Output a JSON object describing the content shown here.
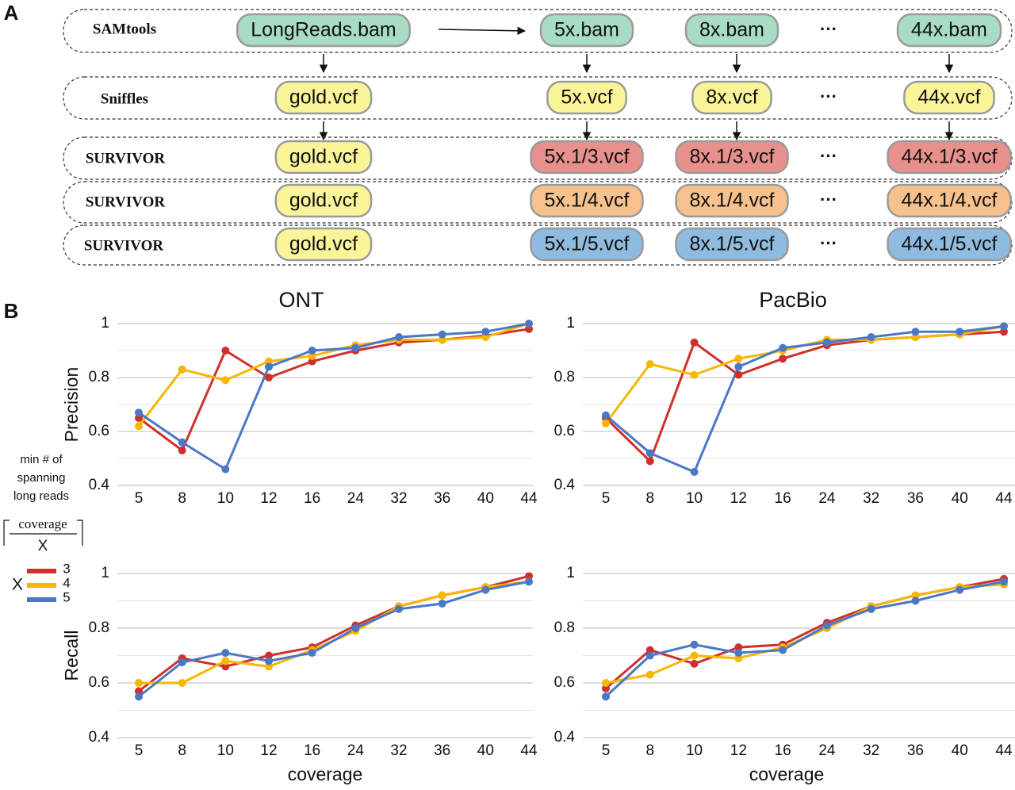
{
  "panel_labels": [
    "A",
    "B"
  ],
  "diagram": {
    "rows": [
      {
        "tool": "SAMtools",
        "ellipsis": "···",
        "files": [
          {
            "label": "LongReads.bam",
            "color": "#a8dcc4"
          },
          {
            "label": "5x.bam",
            "color": "#a8dcc4"
          },
          {
            "label": "8x.bam",
            "color": "#a8dcc4"
          },
          {
            "label": "44x.bam",
            "color": "#a8dcc4"
          }
        ]
      },
      {
        "tool": "Sniffles",
        "ellipsis": "···",
        "files": [
          {
            "label": "gold.vcf",
            "color": "#fbf59a"
          },
          {
            "label": "5x.vcf",
            "color": "#fbf59a"
          },
          {
            "label": "8x.vcf",
            "color": "#fbf59a"
          },
          {
            "label": "44x.vcf",
            "color": "#fbf59a"
          }
        ]
      },
      {
        "tool": "SURVIVOR",
        "ellipsis": "···",
        "files": [
          {
            "label": "gold.vcf",
            "color": "#fbf59a"
          },
          {
            "label": "5x.1/3.vcf",
            "color": "#e8918c"
          },
          {
            "label": "8x.1/3.vcf",
            "color": "#e8918c"
          },
          {
            "label": "44x.1/3.vcf",
            "color": "#e8918c"
          }
        ]
      },
      {
        "tool": "SURVIVOR",
        "ellipsis": "···",
        "files": [
          {
            "label": "gold.vcf",
            "color": "#fbf59a"
          },
          {
            "label": "5x.1/4.vcf",
            "color": "#f6c18c"
          },
          {
            "label": "8x.1/4.vcf",
            "color": "#f6c18c"
          },
          {
            "label": "44x.1/4.vcf",
            "color": "#f6c18c"
          }
        ]
      },
      {
        "tool": "SURVIVOR",
        "ellipsis": "···",
        "files": [
          {
            "label": "gold.vcf",
            "color": "#fbf59a"
          },
          {
            "label": "5x.1/5.vcf",
            "color": "#8fbbe0"
          },
          {
            "label": "8x.1/5.vcf",
            "color": "#8fbbe0"
          },
          {
            "label": "44x.1/5.vcf",
            "color": "#8fbbe0"
          }
        ]
      }
    ]
  },
  "legend": {
    "heading": [
      "min # of",
      "spanning",
      "long reads"
    ],
    "numerator": "coverage",
    "denominator": "X",
    "variable": "X"
  },
  "chart_data": [
    {
      "type": "line",
      "title": "ONT",
      "ylabel": "Precision",
      "categories": [
        "5",
        "8",
        "10",
        "12",
        "16",
        "24",
        "32",
        "36",
        "40",
        "44"
      ],
      "series": [
        {
          "name": "3",
          "color": "#d0302c",
          "values": [
            0.65,
            0.53,
            0.9,
            0.8,
            0.86,
            0.9,
            0.93,
            0.94,
            0.955,
            0.98
          ]
        },
        {
          "name": "4",
          "color": "#f5b700",
          "values": [
            0.62,
            0.83,
            0.79,
            0.86,
            0.88,
            0.92,
            0.94,
            0.94,
            0.95,
            1
          ]
        },
        {
          "name": "5",
          "color": "#4a78c6",
          "values": [
            0.67,
            0.56,
            0.46,
            0.84,
            0.9,
            0.91,
            0.95,
            0.96,
            0.97,
            1
          ]
        }
      ],
      "ylim": [
        0.4,
        1
      ],
      "yticks": [
        0.4,
        0.6,
        0.8,
        1
      ],
      "minor_yticks": [
        0.5,
        0.7,
        0.9
      ],
      "grid": true
    },
    {
      "type": "line",
      "title": "PacBio",
      "categories": [
        "5",
        "8",
        "10",
        "12",
        "16",
        "24",
        "32",
        "36",
        "40",
        "44"
      ],
      "series": [
        {
          "name": "3",
          "color": "#d0302c",
          "values": [
            0.65,
            0.49,
            0.93,
            0.81,
            0.87,
            0.92,
            0.94,
            0.95,
            0.96,
            0.97
          ]
        },
        {
          "name": "4",
          "color": "#f5b700",
          "values": [
            0.63,
            0.85,
            0.81,
            0.87,
            0.9,
            0.94,
            0.94,
            0.95,
            0.96,
            0.99
          ]
        },
        {
          "name": "5",
          "color": "#4a78c6",
          "values": [
            0.66,
            0.52,
            0.45,
            0.84,
            0.91,
            0.93,
            0.95,
            0.97,
            0.97,
            0.99
          ]
        }
      ],
      "ylim": [
        0.4,
        1
      ],
      "yticks": [
        0.4,
        0.6,
        0.8,
        1
      ],
      "minor_yticks": [
        0.5,
        0.7,
        0.9
      ],
      "grid": true
    },
    {
      "type": "line",
      "ylabel": "Recall",
      "xlabel": "coverage",
      "categories": [
        "5",
        "8",
        "10",
        "12",
        "16",
        "24",
        "32",
        "36",
        "40",
        "44"
      ],
      "series": [
        {
          "name": "3",
          "color": "#d0302c",
          "values": [
            0.57,
            0.69,
            0.66,
            0.7,
            0.73,
            0.81,
            0.88,
            0.92,
            0.95,
            0.99
          ]
        },
        {
          "name": "4",
          "color": "#f5b700",
          "values": [
            0.6,
            0.6,
            0.68,
            0.66,
            0.72,
            0.79,
            0.88,
            0.92,
            0.95,
            0.97
          ]
        },
        {
          "name": "5",
          "color": "#4a78c6",
          "values": [
            0.55,
            0.675,
            0.71,
            0.68,
            0.71,
            0.8,
            0.87,
            0.89,
            0.94,
            0.97
          ]
        }
      ],
      "ylim": [
        0.4,
        1
      ],
      "yticks": [
        0.4,
        0.6,
        0.8,
        1
      ],
      "minor_yticks": [
        0.5,
        0.7,
        0.9
      ],
      "grid": true
    },
    {
      "type": "line",
      "xlabel": "coverage",
      "categories": [
        "5",
        "8",
        "10",
        "12",
        "16",
        "24",
        "32",
        "36",
        "40",
        "44"
      ],
      "series": [
        {
          "name": "3",
          "color": "#d0302c",
          "values": [
            0.58,
            0.72,
            0.67,
            0.73,
            0.74,
            0.82,
            0.88,
            0.92,
            0.95,
            0.98
          ]
        },
        {
          "name": "4",
          "color": "#f5b700",
          "values": [
            0.6,
            0.63,
            0.7,
            0.69,
            0.73,
            0.8,
            0.88,
            0.92,
            0.95,
            0.96
          ]
        },
        {
          "name": "5",
          "color": "#4a78c6",
          "values": [
            0.55,
            0.7,
            0.74,
            0.71,
            0.72,
            0.81,
            0.87,
            0.9,
            0.94,
            0.97
          ]
        }
      ],
      "ylim": [
        0.4,
        1
      ],
      "yticks": [
        0.4,
        0.6,
        0.8,
        1
      ],
      "minor_yticks": [
        0.5,
        0.7,
        0.9
      ],
      "grid": true
    }
  ]
}
